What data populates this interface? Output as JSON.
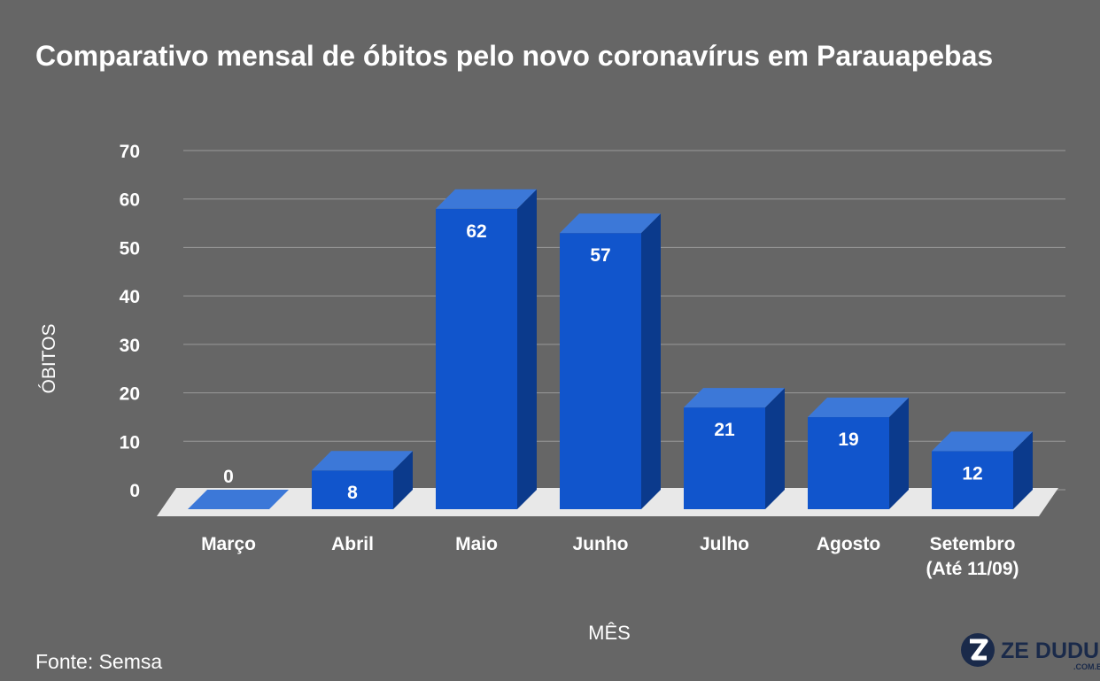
{
  "chart_data": {
    "type": "bar",
    "title": "Comparativo mensal de óbitos pelo novo coronavírus em Parauapebas",
    "xlabel": "MÊS",
    "ylabel": "ÓBITOS",
    "categories": [
      "Março",
      "Abril",
      "Maio",
      "Junho",
      "Julho",
      "Agosto",
      "Setembro (Até 11/09)"
    ],
    "category_lines": [
      [
        "Março"
      ],
      [
        "Abril"
      ],
      [
        "Maio"
      ],
      [
        "Junho"
      ],
      [
        "Julho"
      ],
      [
        "Agosto"
      ],
      [
        "Setembro",
        "(Até 11/09)"
      ]
    ],
    "values": [
      0,
      8,
      62,
      57,
      21,
      19,
      12
    ],
    "data_labels": [
      "0",
      "8",
      "62",
      "57",
      "21",
      "19",
      "12"
    ],
    "ylim": [
      0,
      70
    ],
    "yticks": [
      0,
      10,
      20,
      30,
      40,
      50,
      60,
      70
    ],
    "grid": true,
    "legend": "none",
    "style": "3d"
  },
  "footer": {
    "source": "Fonte: Semsa",
    "logo_text": "ZE DUDU",
    "logo_subtext": ".COM.BR"
  },
  "colors": {
    "background": "#666666",
    "bar_front": "#1155cc",
    "bar_top": "#3c78d8",
    "bar_side": "#0b3a8c",
    "floor": "#e8e8e8",
    "grid": "#9a9a9a",
    "text": "#ffffff"
  }
}
